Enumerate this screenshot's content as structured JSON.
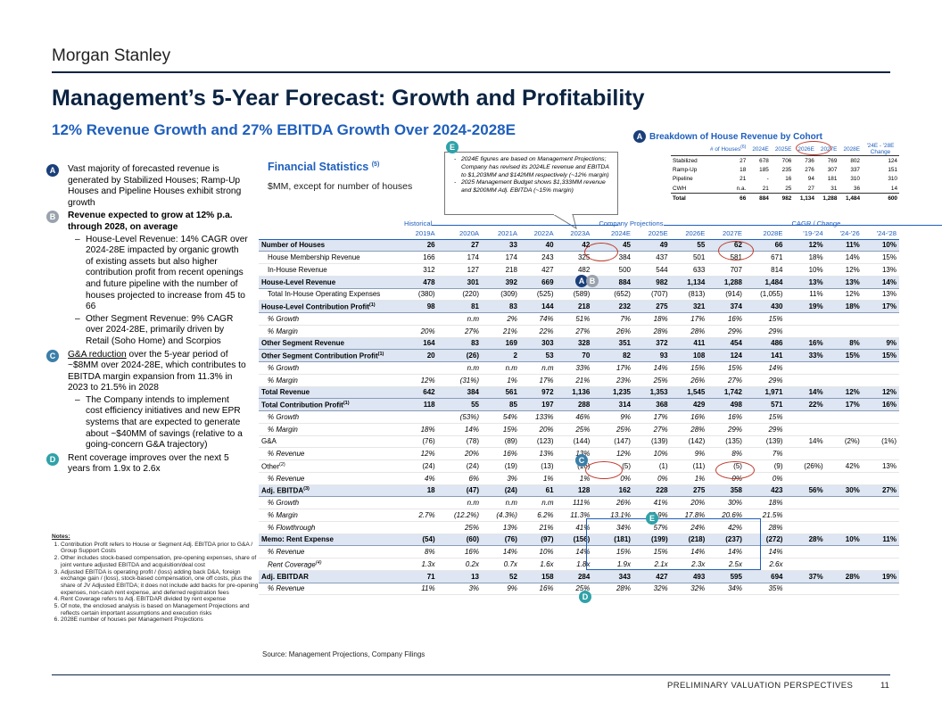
{
  "header": {
    "brand": "Morgan Stanley",
    "title": "Management’s 5-Year Forecast: Growth and Profitability",
    "subtitle": "12% Revenue Growth and 27% EBITDA Growth Over 2024-2028E"
  },
  "left_points": {
    "a_text": "Vast majority of forecasted revenue is generated by Stabilized Houses; Ramp-Up Houses and Pipeline Houses exhibit strong growth",
    "b_text": "Revenue expected to grow at 12% p.a. through 2028, on average",
    "b_sub1": "House-Level Revenue: 14% CAGR over 2024-28E impacted by organic growth of existing assets but also higher contribution profit from recent openings and future pipeline with the number of houses projected to increase from 45 to 66",
    "b_sub2": "Other Segment Revenue: 9% CAGR over 2024-28E, primarily driven by Retail (Soho Home) and Scorpios",
    "c_text_u": "G&A reduction",
    "c_text": " over the 5-year period of ~$8MM over 2024-28E, which contributes to EBITDA margin expansion from 11.3% in 2023 to 21.5% in 2028",
    "c_sub1": "The Company intends to implement cost efficiency initiatives and new EPR systems that are expected to generate about ~$40MM of savings (relative to a going-concern G&A trajectory)",
    "d_text": "Rent coverage improves over the next 5 years from 1.9x to 2.6x"
  },
  "badges": {
    "a": "A",
    "b": "B",
    "c": "C",
    "d": "D",
    "e": "E"
  },
  "notes": {
    "heading": "Notes:",
    "items": [
      "Contribution Profit refers to House or Segment Adj. EBITDA prior to G&A / Group Support Costs",
      "Other includes stock-based compensation, pre-opening expenses, share of joint venture adjusted EBITDA and acquisition/deal cost",
      "Adjusted EBITDA is operating profit / (loss) adding back D&A, foreign exchange gain / (loss), stock-based compensation, one off costs, plus the share of JV Adjusted EBITDA; it does not include add backs for pre-opening expenses, non-cash rent expense, and deferred registration fees",
      "Rent Coverage refers to Adj. EBITDAR divided by rent expense",
      "Of note, the enclosed analysis is based on Management Projections and reflects certain important assumptions and execution risks",
      "2028E number of houses per Management Projections"
    ]
  },
  "fin_stats": {
    "title": "Financial Statistics",
    "title_sup": "(5)",
    "subtitle": "$MM, except for number of houses"
  },
  "callout": {
    "items": [
      "2024E figures are based on Management Projections; Company has revised its 2024LE revenue and EBITDA to $1,203MM and $142MM respectively (~12% margin)",
      "2025 Management Budget shows $1,333MM revenue and $200MM Adj. EBITDA (~15% margin)"
    ]
  },
  "cohort": {
    "title": "Breakdown of House Revenue by Cohort",
    "head_label": "# of Houses",
    "head_sup": "(6)",
    "head_years": [
      "2024E",
      "2025E",
      "2026E",
      "2027E",
      "2028E"
    ],
    "head_change": "'24E - '28E Change",
    "rows": [
      {
        "label": "Stabilized",
        "n": "27",
        "v": [
          "678",
          "706",
          "736",
          "769",
          "802",
          "124"
        ]
      },
      {
        "label": "Ramp-Up",
        "n": "18",
        "v": [
          "185",
          "235",
          "276",
          "307",
          "337",
          "151"
        ]
      },
      {
        "label": "Pipeline",
        "n": "21",
        "v": [
          "-",
          "16",
          "94",
          "181",
          "310",
          "310"
        ]
      },
      {
        "label": "CWH",
        "n": "n.a.",
        "v": [
          "21",
          "25",
          "27",
          "31",
          "36",
          "14"
        ]
      },
      {
        "label": "Total",
        "n": "66",
        "v": [
          "884",
          "982",
          "1,134",
          "1,288",
          "1,484",
          "600"
        ]
      }
    ]
  },
  "main": {
    "groups": {
      "hist": "Historical",
      "proj": "Company Projections",
      "cagr": "CAGR / Change"
    },
    "years": [
      "2019A",
      "2020A",
      "2021A",
      "2022A",
      "2023A",
      "2024E",
      "2025E",
      "2026E",
      "2027E",
      "2028E",
      "'19-'24",
      "'24-'26",
      "'24-'28"
    ],
    "rows": [
      {
        "label": "Number of Houses",
        "style": "hl",
        "v": [
          "26",
          "27",
          "33",
          "40",
          "42",
          "45",
          "49",
          "55",
          "62",
          "66",
          "12%",
          "11%",
          "10%"
        ]
      },
      {
        "label": "House Membership Revenue",
        "style": "ind",
        "v": [
          "166",
          "174",
          "174",
          "243",
          "325",
          "384",
          "437",
          "501",
          "581",
          "671",
          "18%",
          "14%",
          "15%"
        ]
      },
      {
        "label": "In-House Revenue",
        "style": "ind",
        "v": [
          "312",
          "127",
          "218",
          "427",
          "482",
          "500",
          "544",
          "633",
          "707",
          "814",
          "10%",
          "12%",
          "13%"
        ]
      },
      {
        "label": "House-Level Revenue",
        "style": "hl",
        "v": [
          "478",
          "301",
          "392",
          "669",
          "807",
          "884",
          "982",
          "1,134",
          "1,288",
          "1,484",
          "13%",
          "13%",
          "14%"
        ]
      },
      {
        "label": "Total In-House Operating Expenses",
        "style": "ind",
        "v": [
          "(380)",
          "(220)",
          "(309)",
          "(525)",
          "(589)",
          "(652)",
          "(707)",
          "(813)",
          "(914)",
          "(1,055)",
          "11%",
          "12%",
          "13%"
        ]
      },
      {
        "label": "House-Level Contribution Profit",
        "sup": "(1)",
        "style": "hl",
        "v": [
          "98",
          "81",
          "83",
          "144",
          "218",
          "232",
          "275",
          "321",
          "374",
          "430",
          "19%",
          "18%",
          "17%"
        ]
      },
      {
        "label": "% Growth",
        "style": "it",
        "v": [
          "",
          "n.m",
          "2%",
          "74%",
          "51%",
          "7%",
          "18%",
          "17%",
          "16%",
          "15%",
          "",
          "",
          ""
        ]
      },
      {
        "label": "% Margin",
        "style": "it",
        "v": [
          "20%",
          "27%",
          "21%",
          "22%",
          "27%",
          "26%",
          "28%",
          "28%",
          "29%",
          "29%",
          "",
          "",
          ""
        ]
      },
      {
        "label": "Other Segment Revenue",
        "style": "hl",
        "v": [
          "164",
          "83",
          "169",
          "303",
          "328",
          "351",
          "372",
          "411",
          "454",
          "486",
          "16%",
          "8%",
          "9%"
        ]
      },
      {
        "label": "Other Segment Contribution Profit",
        "sup": "(1)",
        "style": "hl",
        "v": [
          "20",
          "(26)",
          "2",
          "53",
          "70",
          "82",
          "93",
          "108",
          "124",
          "141",
          "33%",
          "15%",
          "15%"
        ]
      },
      {
        "label": "% Growth",
        "style": "it",
        "v": [
          "",
          "n.m",
          "n.m",
          "n.m",
          "33%",
          "17%",
          "14%",
          "15%",
          "15%",
          "14%",
          "",
          "",
          ""
        ]
      },
      {
        "label": "% Margin",
        "style": "it",
        "v": [
          "12%",
          "(31%)",
          "1%",
          "17%",
          "21%",
          "23%",
          "25%",
          "26%",
          "27%",
          "29%",
          "",
          "",
          ""
        ]
      },
      {
        "label": "Total Revenue",
        "style": "hl",
        "v": [
          "642",
          "384",
          "561",
          "972",
          "1,136",
          "1,235",
          "1,353",
          "1,545",
          "1,742",
          "1,971",
          "14%",
          "12%",
          "12%"
        ]
      },
      {
        "label": "Total Contribution Profit",
        "sup": "(1)",
        "style": "hl",
        "v": [
          "118",
          "55",
          "85",
          "197",
          "288",
          "314",
          "368",
          "429",
          "498",
          "571",
          "22%",
          "17%",
          "16%"
        ]
      },
      {
        "label": "% Growth",
        "style": "it",
        "v": [
          "",
          "(53%)",
          "54%",
          "133%",
          "46%",
          "9%",
          "17%",
          "16%",
          "16%",
          "15%",
          "",
          "",
          ""
        ]
      },
      {
        "label": "% Margin",
        "style": "it",
        "v": [
          "18%",
          "14%",
          "15%",
          "20%",
          "25%",
          "25%",
          "27%",
          "28%",
          "29%",
          "29%",
          "",
          "",
          ""
        ]
      },
      {
        "label": "G&A",
        "style": "ind0",
        "v": [
          "(76)",
          "(78)",
          "(89)",
          "(123)",
          "(144)",
          "(147)",
          "(139)",
          "(142)",
          "(135)",
          "(139)",
          "14%",
          "(2%)",
          "(1%)"
        ]
      },
      {
        "label": "% Revenue",
        "style": "it",
        "v": [
          "12%",
          "20%",
          "16%",
          "13%",
          "13%",
          "12%",
          "10%",
          "9%",
          "8%",
          "7%",
          "",
          "",
          ""
        ]
      },
      {
        "label": "Other",
        "sup": "(2)",
        "style": "ind0",
        "v": [
          "(24)",
          "(24)",
          "(19)",
          "(13)",
          "(16)",
          "(5)",
          "(1)",
          "(11)",
          "(5)",
          "(9)",
          "(26%)",
          "42%",
          "13%"
        ]
      },
      {
        "label": "% Revenue",
        "style": "it",
        "v": [
          "4%",
          "6%",
          "3%",
          "1%",
          "1%",
          "0%",
          "0%",
          "1%",
          "0%",
          "0%",
          "",
          "",
          ""
        ]
      },
      {
        "label": "Adj. EBITDA",
        "sup": "(3)",
        "style": "hl",
        "v": [
          "18",
          "(47)",
          "(24)",
          "61",
          "128",
          "162",
          "228",
          "275",
          "358",
          "423",
          "56%",
          "30%",
          "27%"
        ]
      },
      {
        "label": "% Growth",
        "style": "it",
        "v": [
          "",
          "n.m",
          "n.m",
          "n.m",
          "111%",
          "26%",
          "41%",
          "20%",
          "30%",
          "18%",
          "",
          "",
          ""
        ]
      },
      {
        "label": "% Margin",
        "style": "it",
        "v": [
          "2.7%",
          "(12.2%)",
          "(4.3%)",
          "6.2%",
          "11.3%",
          "13.1%",
          "16.9%",
          "17.8%",
          "20.6%",
          "21.5%",
          "",
          "",
          ""
        ]
      },
      {
        "label": "% Flowthrough",
        "style": "it",
        "v": [
          "",
          "25%",
          "13%",
          "21%",
          "41%",
          "34%",
          "57%",
          "24%",
          "42%",
          "28%",
          "",
          "",
          ""
        ]
      },
      {
        "label": "Memo: Rent Expense",
        "style": "hl",
        "v": [
          "(54)",
          "(60)",
          "(76)",
          "(97)",
          "(156)",
          "(181)",
          "(199)",
          "(218)",
          "(237)",
          "(272)",
          "28%",
          "10%",
          "11%"
        ]
      },
      {
        "label": "% Revenue",
        "style": "it",
        "v": [
          "8%",
          "16%",
          "14%",
          "10%",
          "14%",
          "15%",
          "15%",
          "14%",
          "14%",
          "14%",
          "",
          "",
          ""
        ]
      },
      {
        "label": "Rent Coverage",
        "sup": "(4)",
        "style": "it",
        "v": [
          "1.3x",
          "0.2x",
          "0.7x",
          "1.6x",
          "1.8x",
          "1.9x",
          "2.1x",
          "2.3x",
          "2.5x",
          "2.6x",
          "",
          "",
          ""
        ]
      },
      {
        "label": "Adj. EBITDAR",
        "style": "hl",
        "v": [
          "71",
          "13",
          "52",
          "158",
          "284",
          "343",
          "427",
          "493",
          "595",
          "694",
          "37%",
          "28%",
          "19%"
        ]
      },
      {
        "label": "% Revenue",
        "style": "it",
        "v": [
          "11%",
          "3%",
          "9%",
          "16%",
          "25%",
          "28%",
          "32%",
          "32%",
          "34%",
          "35%",
          "",
          "",
          ""
        ]
      }
    ]
  },
  "source": "Source: Management Projections, Company Filings",
  "footer": {
    "label": "PRELIMINARY VALUATION PERSPECTIVES",
    "page": "11"
  },
  "colors": {
    "navy": "#0b2341",
    "blue": "#1f5fbd",
    "highlight": "#dde6f2",
    "teal": "#2fa2a8",
    "red": "#c0392b"
  }
}
